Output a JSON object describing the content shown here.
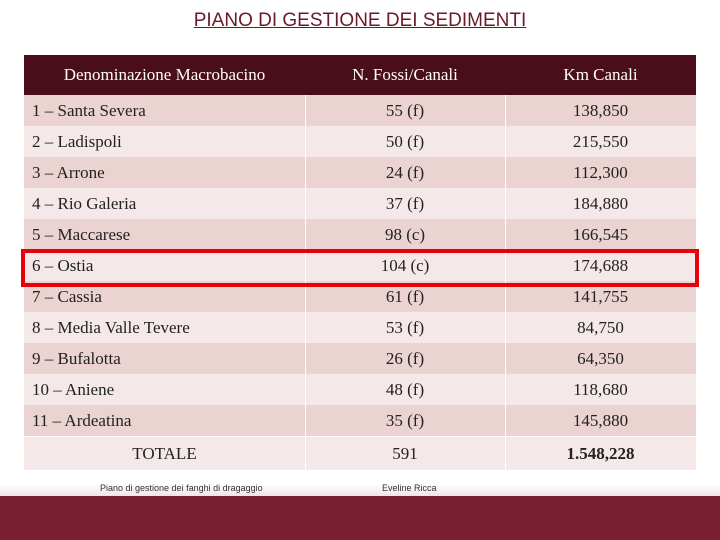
{
  "title": "PIANO DI GESTIONE DEI SEDIMENTI",
  "headers": [
    "Denominazione Macrobacino",
    "N. Fossi/Canali",
    "Km Canali"
  ],
  "rows": [
    [
      "1 – Santa Severa",
      "55 (f)",
      "138,850"
    ],
    [
      "2 – Ladispoli",
      "50 (f)",
      "215,550"
    ],
    [
      "3 – Arrone",
      "24 (f)",
      "112,300"
    ],
    [
      "4 – Rio Galeria",
      "37 (f)",
      "184,880"
    ],
    [
      "5 – Maccarese",
      "98 (c)",
      "166,545"
    ],
    [
      "6 – Ostia",
      "104 (c)",
      "174,688"
    ],
    [
      "7 – Cassia",
      "61 (f)",
      "141,755"
    ],
    [
      "8 – Media Valle Tevere",
      "53 (f)",
      "84,750"
    ],
    [
      "9 – Bufalotta",
      "26 (f)",
      "64,350"
    ],
    [
      "10 – Aniene",
      "48 (f)",
      "118,680"
    ],
    [
      "11 – Ardeatina",
      "35 (f)",
      "145,880"
    ]
  ],
  "total": [
    "TOTALE",
    "591",
    "1.548,228"
  ],
  "footer": {
    "left": "Piano di gestione dei fanghi di dragaggio",
    "center": "Eveline Ricca"
  },
  "colors": {
    "header_bg": "#4a0e1a",
    "highlight": "#e8000b",
    "footer_bg": "#7a1f32"
  }
}
